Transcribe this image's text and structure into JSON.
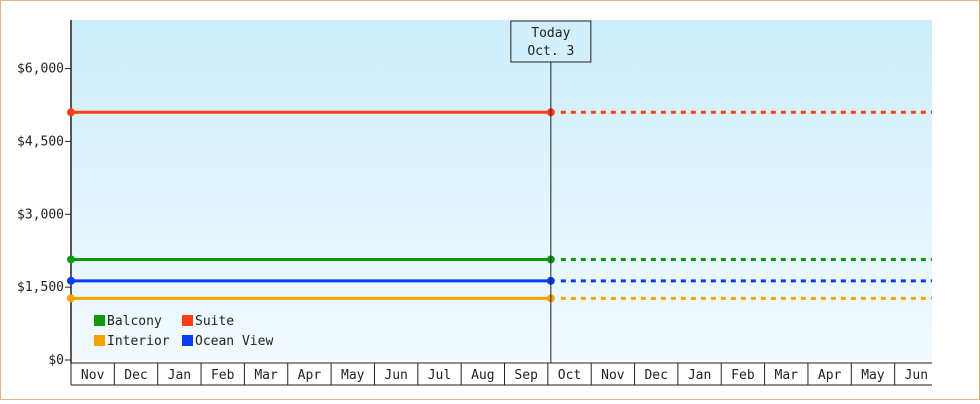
{
  "chart_data": {
    "type": "line",
    "y_tick_labels": [
      "$0",
      "$1,500",
      "$3,000",
      "$4,500",
      "$6,000"
    ],
    "y_tick_values": [
      0,
      1500,
      3000,
      4500,
      6000
    ],
    "ylim": [
      0,
      7000
    ],
    "x_tick_labels": [
      "Nov",
      "Dec",
      "Jan",
      "Feb",
      "Mar",
      "Apr",
      "May",
      "Jun",
      "Jul",
      "Aug",
      "Sep",
      "Oct",
      "Nov",
      "Dec",
      "Jan",
      "Feb",
      "Mar",
      "Apr",
      "May",
      "Jun"
    ],
    "today_index": 11,
    "today_label": [
      "Today",
      "Oct. 3"
    ],
    "series": [
      {
        "name": "Balcony",
        "color": "#0d9b0d",
        "value": 2070
      },
      {
        "name": "Suite",
        "color": "#ff3c14",
        "value": 5100
      },
      {
        "name": "Interior",
        "color": "#f5a300",
        "value": 1270
      },
      {
        "name": "Ocean View",
        "color": "#0a3cf0",
        "value": 1630
      }
    ],
    "legend_order": [
      "Balcony",
      "Suite",
      "Interior",
      "Ocean View"
    ],
    "legend_placement": "bottom-left",
    "grid": false,
    "background_gradient": [
      "#cdeefb",
      "#f2fafe"
    ]
  }
}
